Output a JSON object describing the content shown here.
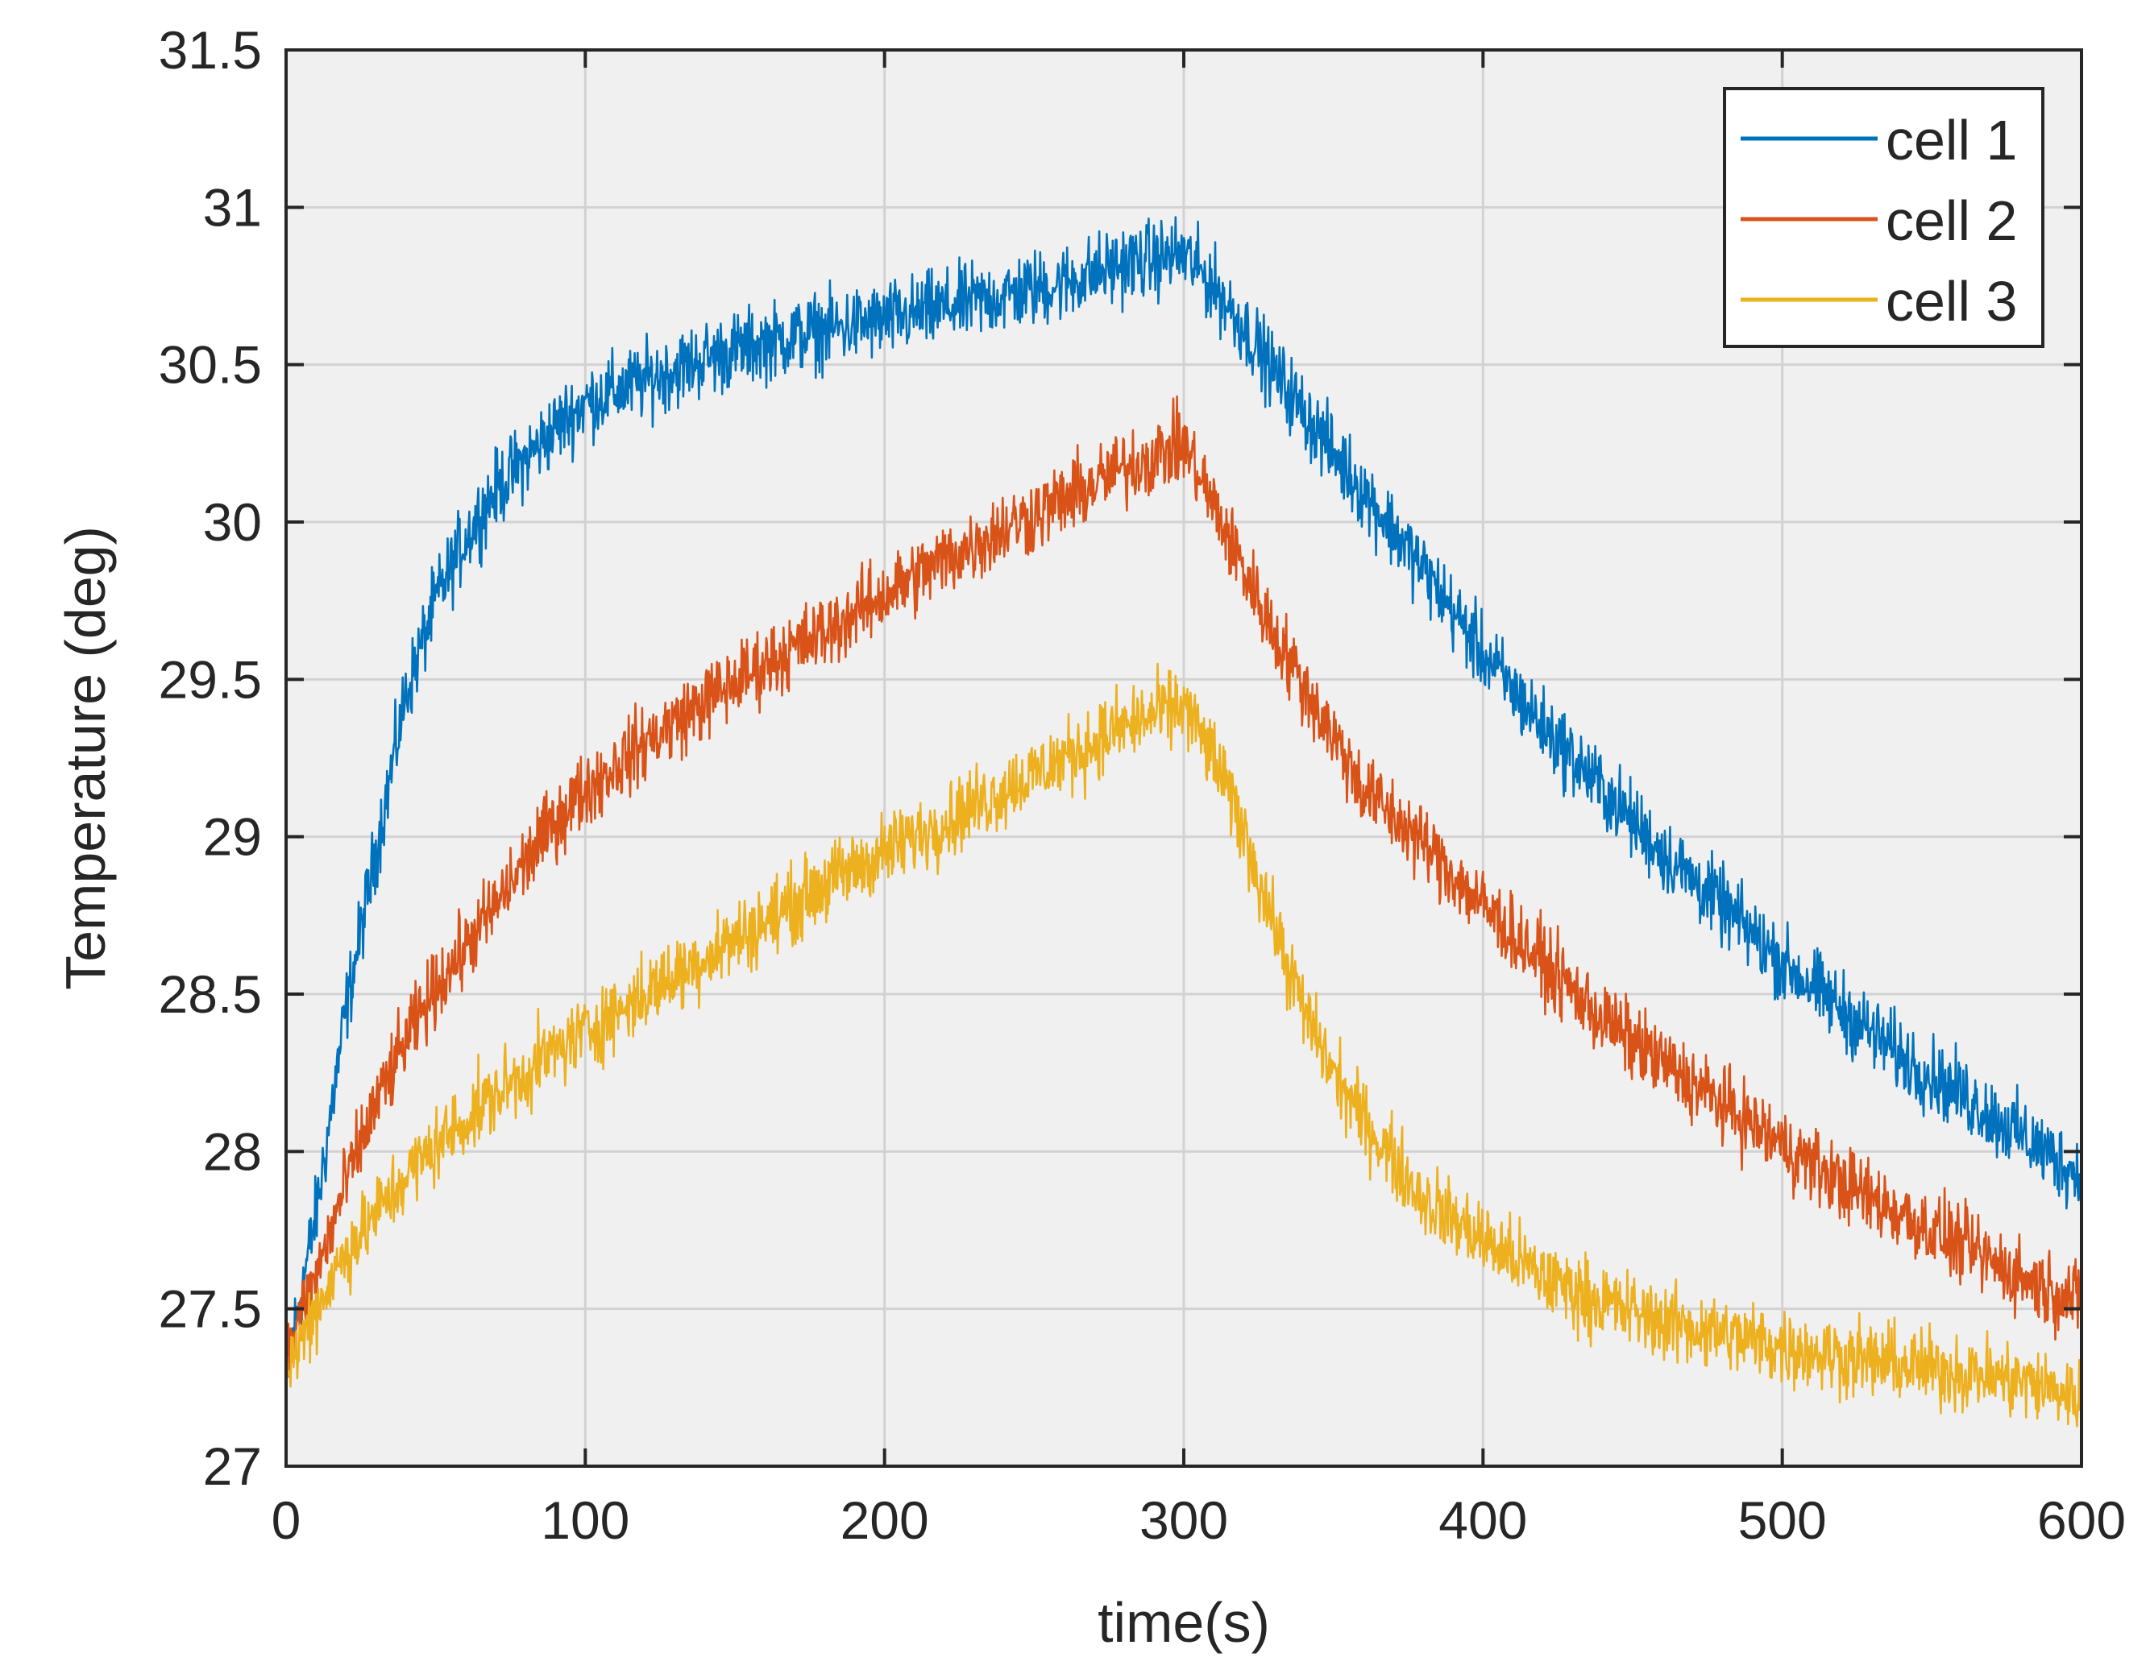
{
  "chart_data": {
    "type": "line",
    "title": "",
    "xlabel": "time(s)",
    "ylabel": "Temperature (deg)",
    "xlim": [
      0,
      600
    ],
    "ylim": [
      27,
      31.5
    ],
    "grid": true,
    "legend_position": "top-right",
    "x_ticks": [
      0,
      100,
      200,
      300,
      400,
      500,
      600
    ],
    "x_tick_labels": [
      "0",
      "100",
      "200",
      "300",
      "400",
      "500",
      "600"
    ],
    "y_ticks": [
      27,
      27.5,
      28,
      28.5,
      29,
      29.5,
      30,
      30.5,
      31,
      31.5
    ],
    "y_tick_labels": [
      "27",
      "27.5",
      "28",
      "28.5",
      "29",
      "29.5",
      "30",
      "30.5",
      "31",
      "31.5"
    ],
    "x": [
      0,
      10,
      20,
      30,
      40,
      50,
      60,
      70,
      80,
      90,
      100,
      120,
      140,
      160,
      180,
      200,
      220,
      240,
      260,
      280,
      300,
      310,
      320,
      330,
      340,
      350,
      360,
      380,
      400,
      420,
      440,
      460,
      480,
      500,
      520,
      540,
      560,
      580,
      600
    ],
    "series": [
      {
        "name": "cell 1",
        "color": "#0072BD",
        "noise": 0.06,
        "values": [
          27.3,
          27.8,
          28.45,
          28.95,
          29.45,
          29.75,
          29.95,
          30.1,
          30.2,
          30.3,
          30.38,
          30.45,
          30.52,
          30.57,
          30.61,
          30.64,
          30.68,
          30.72,
          30.76,
          30.82,
          30.85,
          30.75,
          30.62,
          30.48,
          30.35,
          30.22,
          30.1,
          29.85,
          29.58,
          29.35,
          29.15,
          28.95,
          28.78,
          28.6,
          28.45,
          28.3,
          28.18,
          28.05,
          27.92
        ]
      },
      {
        "name": "cell 2",
        "color": "#D95319",
        "noise": 0.06,
        "values": [
          27.35,
          27.6,
          27.9,
          28.15,
          28.35,
          28.52,
          28.65,
          28.78,
          28.92,
          29.05,
          29.15,
          29.3,
          29.43,
          29.55,
          29.65,
          29.77,
          29.88,
          29.98,
          30.07,
          30.17,
          30.25,
          30.05,
          29.85,
          29.65,
          29.48,
          29.32,
          29.15,
          28.98,
          28.78,
          28.6,
          28.42,
          28.28,
          28.15,
          28.02,
          27.9,
          27.8,
          27.7,
          27.6,
          27.52
        ]
      },
      {
        "name": "cell 3",
        "color": "#EDB120",
        "noise": 0.06,
        "values": [
          27.3,
          27.5,
          27.68,
          27.8,
          27.92,
          28.02,
          28.1,
          28.18,
          28.25,
          28.32,
          28.38,
          28.5,
          28.62,
          28.73,
          28.85,
          28.95,
          29.05,
          29.15,
          29.25,
          29.35,
          29.42,
          29.25,
          29.02,
          28.72,
          28.45,
          28.25,
          28.1,
          27.85,
          27.72,
          27.6,
          27.52,
          27.46,
          27.42,
          27.38,
          27.35,
          27.32,
          27.3,
          27.27,
          27.22
        ]
      }
    ]
  }
}
